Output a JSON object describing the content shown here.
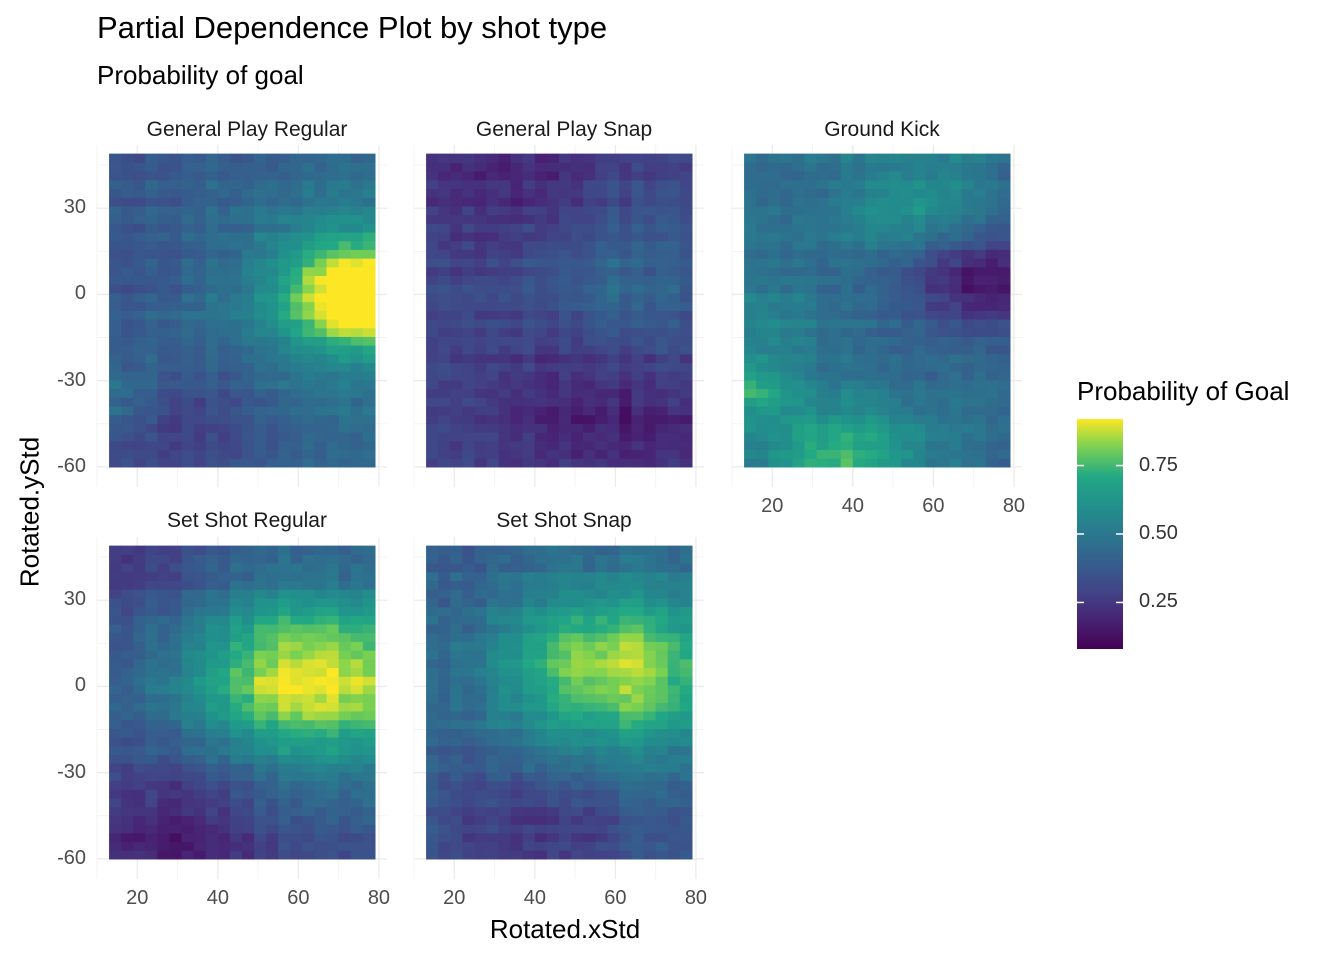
{
  "chart_data": {
    "type": "heatmap",
    "title": "Partial Dependence Plot by shot type",
    "subtitle": "Probability of goal",
    "xlabel": "Rotated.xStd",
    "ylabel": "Rotated.yStd",
    "xlim": [
      10,
      82
    ],
    "ylim": [
      -67,
      52
    ],
    "x_ticks": [
      20,
      40,
      60,
      80
    ],
    "y_ticks": [
      30,
      0,
      -30,
      -60
    ],
    "data_x_range": [
      13,
      79
    ],
    "data_y_range": [
      -60,
      49
    ],
    "grid": true,
    "colorscale": "viridis",
    "legend": {
      "title": "Probability of Goal",
      "position": "right",
      "range": [
        0.08,
        0.92
      ],
      "ticks": [
        0.75,
        0.5,
        0.25
      ],
      "tick_labels": [
        "0.75",
        "0.50",
        "0.25"
      ]
    },
    "panels": [
      {
        "name": "General Play Regular",
        "hotspots": [
          {
            "x": 77,
            "y": 0,
            "r": 12,
            "v": 0.5
          },
          {
            "x": 68,
            "y": 2,
            "r": 20,
            "v": 0.2
          },
          {
            "x": 15,
            "y": -36,
            "r": 10,
            "v": 0.12
          },
          {
            "x": 32,
            "y": -45,
            "r": 12,
            "v": -0.12
          }
        ],
        "base": 0.4,
        "gradient": [
          0.0015,
          0.0
        ]
      },
      {
        "name": "General Play Snap",
        "hotspots": [
          {
            "x": 62,
            "y": 5,
            "r": 20,
            "v": 0.12
          },
          {
            "x": 35,
            "y": 38,
            "r": 18,
            "v": -0.1
          },
          {
            "x": 50,
            "y": -35,
            "r": 18,
            "v": -0.1
          },
          {
            "x": 68,
            "y": -48,
            "r": 12,
            "v": -0.08
          }
        ],
        "base": 0.3,
        "gradient": [
          0.0,
          0.0
        ]
      },
      {
        "name": "Ground Kick",
        "hotspots": [
          {
            "x": 72,
            "y": 5,
            "r": 12,
            "v": -0.3
          },
          {
            "x": 15,
            "y": -33,
            "r": 8,
            "v": 0.22
          },
          {
            "x": 38,
            "y": -58,
            "r": 14,
            "v": 0.3
          },
          {
            "x": 55,
            "y": 33,
            "r": 12,
            "v": 0.18
          },
          {
            "x": 18,
            "y": -10,
            "r": 10,
            "v": 0.1
          }
        ],
        "base": 0.45,
        "gradient": [
          0.0,
          0.0
        ]
      },
      {
        "name": "Set Shot Regular",
        "hotspots": [
          {
            "x": 70,
            "y": 2,
            "r": 22,
            "v": 0.42
          },
          {
            "x": 52,
            "y": 5,
            "r": 20,
            "v": 0.2
          },
          {
            "x": 30,
            "y": -50,
            "r": 16,
            "v": -0.18
          },
          {
            "x": 18,
            "y": 40,
            "r": 12,
            "v": -0.1
          }
        ],
        "base": 0.35,
        "gradient": [
          0.0,
          0.0
        ]
      },
      {
        "name": "Set Shot Snap",
        "hotspots": [
          {
            "x": 65,
            "y": 5,
            "r": 22,
            "v": 0.35
          },
          {
            "x": 52,
            "y": 8,
            "r": 20,
            "v": 0.15
          },
          {
            "x": 40,
            "y": -50,
            "r": 16,
            "v": -0.14
          }
        ],
        "base": 0.38,
        "gradient": [
          0.0,
          0.0
        ]
      }
    ]
  }
}
